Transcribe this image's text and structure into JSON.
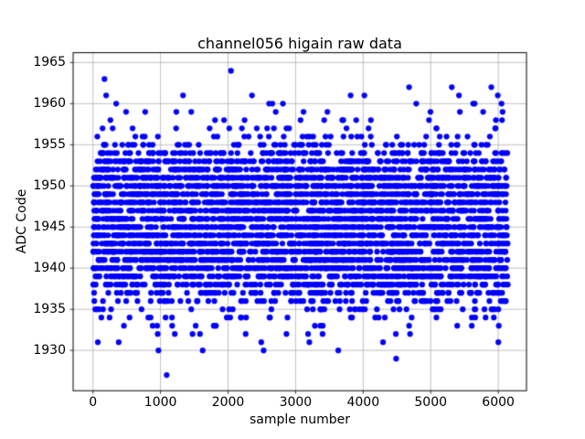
{
  "chart_data": {
    "type": "scatter",
    "title": "channel056 higain raw data",
    "xlabel": "sample number",
    "ylabel": "ADC Code",
    "xticks": [
      0,
      1000,
      2000,
      3000,
      4000,
      5000,
      6000
    ],
    "yticks": [
      1930,
      1935,
      1940,
      1945,
      1950,
      1955,
      1960,
      1965
    ],
    "xlim": [
      -294,
      6418
    ],
    "ylim": [
      1925.1,
      1966.2
    ],
    "grid": true,
    "grid_color": "#b0b0b0",
    "axis_color": "#000000",
    "marker_color": "#0000ff",
    "marker_radius_px": 3.1,
    "x_sample_range": [
      0,
      6143
    ],
    "adc_code_counts": {
      "1931": 6,
      "1932": 10,
      "1933": 15,
      "1934": 26,
      "1935": 42,
      "1936": 70,
      "1937": 110,
      "1938": 170,
      "1939": 210,
      "1940": 240,
      "1941": 260,
      "1942": 260,
      "1943": 260,
      "1944": 260,
      "1945": 260,
      "1946": 260,
      "1947": 260,
      "1948": 260,
      "1949": 260,
      "1950": 260,
      "1951": 240,
      "1952": 210,
      "1953": 170,
      "1954": 110,
      "1955": 60,
      "1956": 30,
      "1957": 18,
      "1958": 13,
      "1959": 11,
      "1960": 8,
      "1961": 7
    },
    "outlier_points": [
      [
        170,
        1963
      ],
      [
        2043,
        1964
      ],
      [
        4680,
        1962
      ],
      [
        5312,
        1962
      ],
      [
        5897,
        1962
      ],
      [
        969,
        1930
      ],
      [
        1624,
        1930
      ],
      [
        2526,
        1930
      ],
      [
        3631,
        1930
      ],
      [
        4488,
        1929
      ],
      [
        1091,
        1927
      ]
    ],
    "random_seed": 7
  }
}
